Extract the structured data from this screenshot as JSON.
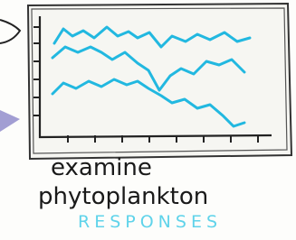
{
  "caption": {
    "line1": "examine",
    "line2": "phytoplankton",
    "line3": "RESPONSES"
  }
}
